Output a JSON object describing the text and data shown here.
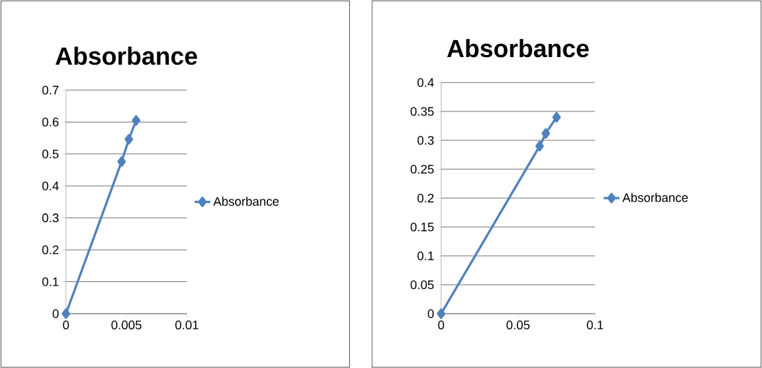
{
  "chart_data": [
    {
      "type": "line",
      "title": "Absorbance",
      "x": [
        0,
        0.0046,
        0.0052,
        0.0058
      ],
      "series": [
        {
          "name": "Absorbance",
          "color": "#4f81bd",
          "values": [
            0,
            0.476,
            0.546,
            0.605
          ]
        }
      ],
      "xlim": [
        0,
        0.01
      ],
      "xticks": [
        0,
        0.005,
        0.01
      ],
      "ylim": [
        0,
        0.7
      ],
      "yticks": [
        0,
        0.1,
        0.2,
        0.3,
        0.4,
        0.5,
        0.6,
        0.7
      ],
      "grid": "y",
      "legend": "right",
      "marker": "diamond",
      "line_style": "solid"
    },
    {
      "type": "line",
      "title": "Absorbance",
      "x": [
        0,
        0.064,
        0.068,
        0.075
      ],
      "series": [
        {
          "name": "Absorbance",
          "color": "#4f81bd",
          "values": [
            0,
            0.29,
            0.312,
            0.34
          ]
        }
      ],
      "xlim": [
        0,
        0.1
      ],
      "xticks": [
        0,
        0.05,
        0.1
      ],
      "ylim": [
        0,
        0.4
      ],
      "yticks": [
        0,
        0.05,
        0.1,
        0.15,
        0.2,
        0.25,
        0.3,
        0.35,
        0.4
      ],
      "grid": "y",
      "legend": "right",
      "marker": "diamond",
      "line_style": "solid"
    }
  ]
}
